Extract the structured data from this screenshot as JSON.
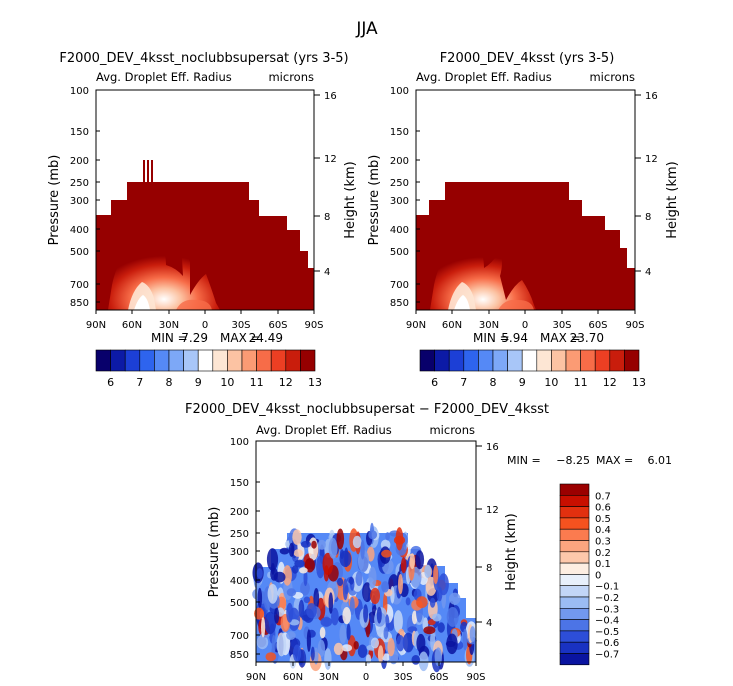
{
  "title": "JJA",
  "common": {
    "subtitle": "Avg. Droplet Eff. Radius",
    "units": "microns",
    "y_label": "Pressure (mb)",
    "y2_label": "Height (km)",
    "pressure_ticks": [
      "100",
      "150",
      "200",
      "250",
      "300",
      "400",
      "500",
      "700",
      "850"
    ],
    "height_ticks": [
      "16",
      "12",
      "8",
      "4"
    ],
    "lat_ticks": [
      "90N",
      "60N",
      "30N",
      "0",
      "30S",
      "60S",
      "90S"
    ]
  },
  "chart_data": [
    {
      "type": "heatmap",
      "title": "F2000_DEV_4ksst_noclubbsupersat (yrs 3-5)",
      "subtitle": "Avg. Droplet Eff. Radius",
      "units": "microns",
      "xlabel": "",
      "ylabel": "Pressure (mb)",
      "y2label": "Height (km)",
      "min_label": "MIN =",
      "min_value": "7.29",
      "max_label": "MAX =",
      "max_value": "24.49",
      "colorbar_labels": [
        "6",
        "7",
        "8",
        "9",
        "10",
        "11",
        "12",
        "13"
      ]
    },
    {
      "type": "heatmap",
      "title": "F2000_DEV_4ksst (yrs 3-5)",
      "subtitle": "Avg. Droplet Eff. Radius",
      "units": "microns",
      "xlabel": "",
      "ylabel": "Pressure (mb)",
      "y2label": "Height (km)",
      "min_label": "MIN =",
      "min_value": "5.94",
      "max_label": "MAX =",
      "max_value": "23.70",
      "colorbar_labels": [
        "6",
        "7",
        "8",
        "9",
        "10",
        "11",
        "12",
        "13"
      ]
    },
    {
      "type": "heatmap",
      "title": "F2000_DEV_4ksst_noclubbsupersat − F2000_DEV_4ksst",
      "subtitle": "Avg. Droplet Eff. Radius",
      "units": "microns",
      "xlabel": "",
      "ylabel": "Pressure (mb)",
      "y2label": "Height (km)",
      "min_label": "MIN =",
      "min_value": "−8.25",
      "max_label": "MAX =",
      "max_value": "6.01",
      "colorbar_labels": [
        "0.7",
        "0.6",
        "0.5",
        "0.4",
        "0.3",
        "0.2",
        "0.1",
        "0",
        "−0.1",
        "−0.2",
        "−0.3",
        "−0.4",
        "−0.5",
        "−0.6",
        "−0.7"
      ]
    }
  ],
  "colors": {
    "seq_palette": [
      "#08006b",
      "#0c1aa6",
      "#1c3fd6",
      "#2e64ee",
      "#5589f6",
      "#7da8f7",
      "#a8c6f8",
      "#ffffff",
      "#fde6d4",
      "#fcc3a3",
      "#fb9b74",
      "#f76c48",
      "#ec3f23",
      "#c91d0c",
      "#960000"
    ],
    "div_palette": [
      "#9b0000",
      "#c80f00",
      "#e2300f",
      "#f5521f",
      "#fb7b4f",
      "#fca57f",
      "#fdc8ab",
      "#fdeee2",
      "#e8f0fb",
      "#c2d6f7",
      "#9bbcf4",
      "#7298ee",
      "#4c74e6",
      "#2d4ed8",
      "#1932c2",
      "#0a14a0"
    ]
  }
}
